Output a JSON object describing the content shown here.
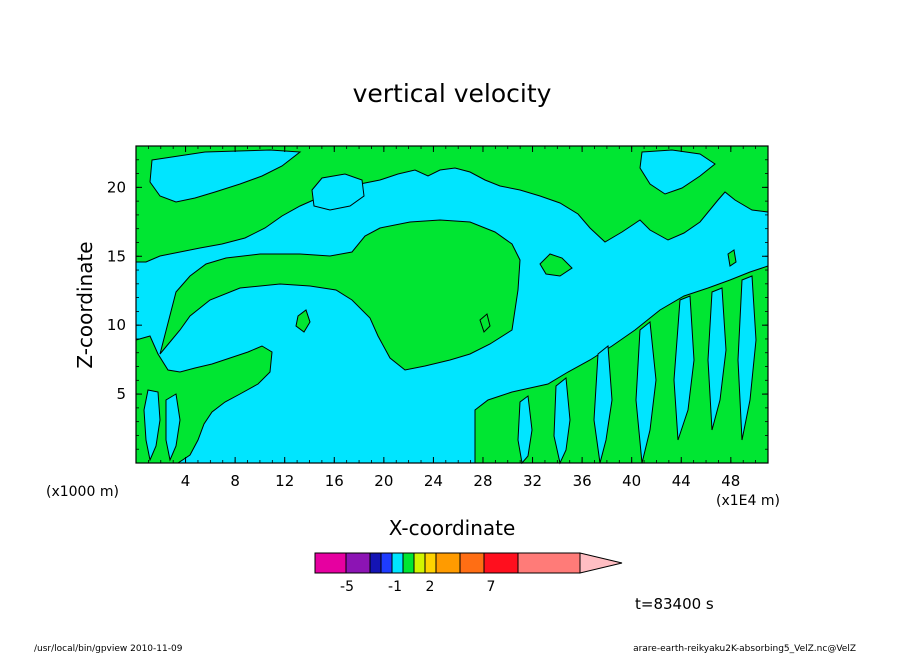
{
  "chart_data": {
    "type": "contour",
    "title": "vertical velocity",
    "xlabel": "X-coordinate",
    "ylabel": "Z-coordinate",
    "x_unit": "(x1E4 m)",
    "y_unit": "(x1000 m)",
    "xlim": [
      0,
      51
    ],
    "ylim": [
      0,
      23
    ],
    "x_ticks": [
      "4",
      "8",
      "12",
      "16",
      "20",
      "24",
      "28",
      "32",
      "36",
      "40",
      "44",
      "48"
    ],
    "y_ticks": [
      "5",
      "10",
      "15",
      "20"
    ],
    "regions": [
      {
        "name": "negative",
        "color": "#00e5ff"
      },
      {
        "name": "positive",
        "color": "#00e632"
      }
    ],
    "colorbar": {
      "colors": [
        "#e600a0",
        "#8c14b4",
        "#1414b4",
        "#1e3cff",
        "#00e5ff",
        "#00e632",
        "#d2f500",
        "#ffd200",
        "#ff9b00",
        "#ff6e14",
        "#ff0f1e",
        "#ff7b78",
        "#ffbec3"
      ],
      "tick_labels": [
        "-5",
        "-1",
        "2",
        "7"
      ]
    },
    "time_label": "t=83400 s",
    "grid": false,
    "legend": "colorbar-bottom"
  },
  "footer": {
    "left": "/usr/local/bin/gpview  2010-11-09",
    "right": "arare-earth-reikyaku2K-absorbing5_VelZ.nc@VelZ"
  }
}
